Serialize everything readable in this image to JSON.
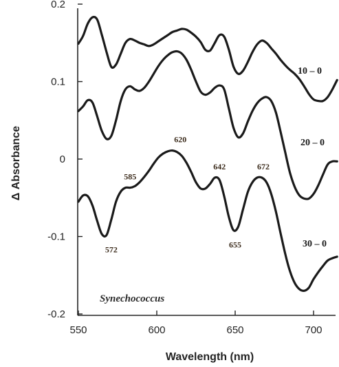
{
  "chart_data": {
    "type": "line",
    "xlabel": "Wavelength (nm)",
    "ylabel": "Δ Absorbance",
    "xlim": [
      550,
      715
    ],
    "ylim": [
      -0.2,
      0.2
    ],
    "xticks": [
      550,
      600,
      650,
      700
    ],
    "xtick_labels": [
      "550",
      "600",
      "650",
      "700"
    ],
    "yticks": [
      0.2,
      0.1,
      0,
      -0.1,
      -0.2
    ],
    "ytick_labels": [
      "0.2",
      "0.1",
      "0",
      "-0.1",
      "-0.2"
    ],
    "grid": false,
    "annotation": "Synechococcus",
    "series": [
      {
        "name": "10 – 0",
        "x": [
          550,
          553,
          556,
          559,
          562,
          565,
          568,
          571,
          574,
          577,
          580,
          583,
          586,
          589,
          592,
          595,
          598,
          601,
          604,
          607,
          610,
          613,
          616,
          619,
          622,
          625,
          628,
          631,
          634,
          637,
          640,
          643,
          646,
          649,
          652,
          655,
          658,
          661,
          664,
          667,
          670,
          673,
          676,
          679,
          682,
          685,
          688,
          691,
          694,
          697,
          700,
          703,
          706,
          709,
          712,
          715
        ],
        "y": [
          0.149,
          0.159,
          0.175,
          0.183,
          0.18,
          0.16,
          0.138,
          0.119,
          0.122,
          0.136,
          0.15,
          0.155,
          0.153,
          0.15,
          0.148,
          0.146,
          0.148,
          0.152,
          0.156,
          0.16,
          0.164,
          0.166,
          0.168,
          0.167,
          0.163,
          0.158,
          0.151,
          0.141,
          0.14,
          0.15,
          0.16,
          0.158,
          0.141,
          0.119,
          0.11,
          0.114,
          0.125,
          0.138,
          0.148,
          0.153,
          0.15,
          0.143,
          0.136,
          0.128,
          0.121,
          0.115,
          0.11,
          0.103,
          0.094,
          0.084,
          0.077,
          0.075,
          0.075,
          0.08,
          0.09,
          0.102
        ]
      },
      {
        "name": "20 – 0",
        "x": [
          550,
          553,
          556,
          559,
          562,
          565,
          568,
          571,
          574,
          577,
          580,
          583,
          586,
          589,
          592,
          595,
          598,
          601,
          604,
          607,
          610,
          613,
          616,
          619,
          622,
          625,
          628,
          631,
          634,
          637,
          640,
          643,
          646,
          649,
          652,
          655,
          658,
          661,
          664,
          667,
          670,
          673,
          676,
          679,
          682,
          685,
          688,
          691,
          694,
          697,
          700,
          703,
          706,
          709,
          712,
          715
        ],
        "y": [
          0.062,
          0.068,
          0.076,
          0.073,
          0.055,
          0.036,
          0.026,
          0.03,
          0.05,
          0.075,
          0.09,
          0.094,
          0.09,
          0.088,
          0.092,
          0.1,
          0.11,
          0.12,
          0.128,
          0.134,
          0.138,
          0.139,
          0.136,
          0.128,
          0.115,
          0.1,
          0.087,
          0.083,
          0.086,
          0.092,
          0.095,
          0.09,
          0.065,
          0.04,
          0.028,
          0.033,
          0.048,
          0.062,
          0.072,
          0.078,
          0.08,
          0.075,
          0.06,
          0.035,
          0.008,
          -0.018,
          -0.036,
          -0.047,
          -0.051,
          -0.051,
          -0.045,
          -0.034,
          -0.02,
          -0.007,
          -0.003,
          -0.003
        ]
      },
      {
        "name": "30 – 0",
        "x": [
          550,
          553,
          556,
          559,
          562,
          565,
          568,
          571,
          574,
          577,
          580,
          583,
          586,
          589,
          592,
          595,
          598,
          601,
          604,
          607,
          610,
          613,
          616,
          619,
          622,
          625,
          628,
          631,
          634,
          637,
          640,
          643,
          646,
          649,
          652,
          655,
          658,
          661,
          664,
          667,
          670,
          673,
          676,
          679,
          682,
          685,
          688,
          691,
          694,
          697,
          700,
          703,
          706,
          709,
          712,
          715
        ],
        "y": [
          -0.055,
          -0.047,
          -0.048,
          -0.06,
          -0.08,
          -0.097,
          -0.098,
          -0.078,
          -0.055,
          -0.042,
          -0.037,
          -0.037,
          -0.035,
          -0.03,
          -0.023,
          -0.015,
          -0.006,
          0.002,
          0.007,
          0.01,
          0.011,
          0.009,
          0.004,
          -0.005,
          -0.017,
          -0.03,
          -0.038,
          -0.038,
          -0.032,
          -0.024,
          -0.027,
          -0.048,
          -0.075,
          -0.092,
          -0.087,
          -0.065,
          -0.043,
          -0.03,
          -0.024,
          -0.024,
          -0.03,
          -0.045,
          -0.068,
          -0.096,
          -0.123,
          -0.145,
          -0.16,
          -0.168,
          -0.17,
          -0.166,
          -0.155,
          -0.146,
          -0.138,
          -0.131,
          -0.128,
          -0.126
        ]
      }
    ],
    "peak_labels": [
      {
        "text": "572",
        "x": 571,
        "y": -0.098,
        "pos": "below"
      },
      {
        "text": "585",
        "x": 583,
        "y": -0.037,
        "pos": "above"
      },
      {
        "text": "620",
        "x": 615,
        "y": 0.011,
        "pos": "above"
      },
      {
        "text": "642",
        "x": 640,
        "y": -0.024,
        "pos": "above"
      },
      {
        "text": "655",
        "x": 650,
        "y": -0.092,
        "pos": "below"
      },
      {
        "text": "672",
        "x": 668,
        "y": -0.024,
        "pos": "above"
      }
    ]
  }
}
